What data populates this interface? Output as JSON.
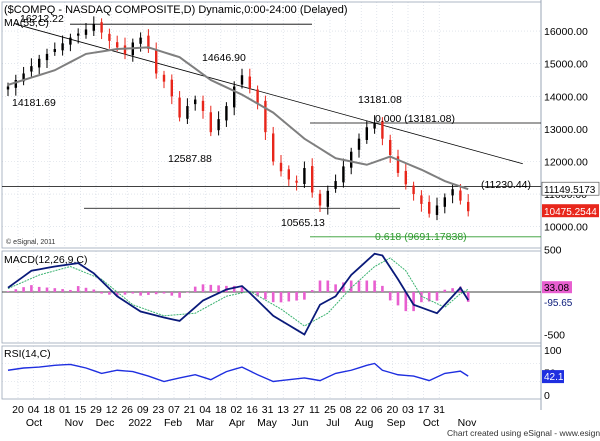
{
  "header": {
    "title": "($COMPQ - NASDAQ COMPOSITE,D) Dynamic,0:00-24:00 (Delayed)",
    "ma_label": "MA(55,C)",
    "credit": "© eSignal, 2011",
    "footer": "Chart created using eSignal - www.esignal.com"
  },
  "colors": {
    "background": "#ffffff",
    "grid": "#cfd6e0",
    "candle_up": "#000000",
    "candle_down": "#e8261b",
    "ma": "#7f7f7f",
    "trendline": "#000000",
    "fib_zero": "#000000",
    "fib_618": "#2e9a2e",
    "macd": "#0a1a7a",
    "signal": "#3cb371",
    "hist": "#e85fd0",
    "rsi": "#1f2fe0",
    "last_price_box": "#e8261b"
  },
  "chart_data": [
    {
      "type": "candlestick",
      "title": "($COMPQ - NASDAQ COMPOSITE,D) Dynamic,0:00-24:00 (Delayed)",
      "ylim": [
        9500,
        16600
      ],
      "yticks": [
        "10000.00",
        "11000.00",
        "12000.00",
        "13000.00",
        "14000.00",
        "15000.00",
        "16000.00"
      ],
      "x_major": [
        "Oct",
        "Nov",
        "Dec",
        "2022",
        "Feb",
        "Mar",
        "Apr",
        "May",
        "Jun",
        "Jul",
        "Aug",
        "Sep",
        "Oct",
        "Nov"
      ],
      "x_minor": [
        "20",
        "04",
        "18",
        "01",
        "15",
        "29",
        "12",
        "26",
        "09",
        "23",
        "07",
        "21",
        "04",
        "18",
        "02",
        "16",
        "31",
        "13",
        "27",
        "11",
        "25",
        "08",
        "22",
        "06",
        "20",
        "03",
        "17",
        "31"
      ],
      "last_price": "10475.2544",
      "ma_last": "11149.5173",
      "annotations": [
        "16212.22",
        "14181.69",
        "14646.90",
        "12587.88",
        "10565.13",
        "13181.08",
        "(11230.44)"
      ],
      "fib_levels": [
        {
          "label": "0.000 (13181.08)",
          "value": 13181.08
        },
        {
          "label": "0.618 (9691.17838)",
          "value": 9691.18
        }
      ],
      "horizontal_levels": [
        16212.22,
        11230.44,
        10565.13
      ],
      "trendline": [
        [
          1,
          16212.22
        ],
        [
          66,
          11930.0
        ]
      ],
      "close_anchors": [
        [
          0,
          14300
        ],
        [
          2,
          14700
        ],
        [
          4,
          15150
        ],
        [
          6,
          15450
        ],
        [
          8,
          15800
        ],
        [
          10,
          16050
        ],
        [
          11,
          16212
        ],
        [
          13,
          15700
        ],
        [
          15,
          15300
        ],
        [
          16,
          15650
        ],
        [
          17,
          15800
        ],
        [
          18,
          15450
        ],
        [
          19,
          14700
        ],
        [
          20,
          14450
        ],
        [
          21,
          14000
        ],
        [
          22,
          13350
        ],
        [
          23,
          13700
        ],
        [
          24,
          13900
        ],
        [
          25,
          13550
        ],
        [
          26,
          12900
        ],
        [
          27,
          13300
        ],
        [
          28,
          13700
        ],
        [
          29,
          14300
        ],
        [
          30,
          14646
        ],
        [
          31,
          14250
        ],
        [
          32,
          13800
        ],
        [
          33,
          12900
        ],
        [
          34,
          12000
        ],
        [
          35,
          11700
        ],
        [
          36,
          11450
        ],
        [
          37,
          11350
        ],
        [
          38,
          11800
        ],
        [
          39,
          11050
        ],
        [
          40,
          10650
        ],
        [
          41,
          11100
        ],
        [
          42,
          11400
        ],
        [
          43,
          11850
        ],
        [
          44,
          12300
        ],
        [
          45,
          12700
        ],
        [
          46,
          13050
        ],
        [
          47,
          13181
        ],
        [
          48,
          12700
        ],
        [
          49,
          12200
        ],
        [
          50,
          11650
        ],
        [
          51,
          11300
        ],
        [
          52,
          11000
        ],
        [
          53,
          10700
        ],
        [
          54,
          10400
        ],
        [
          55,
          10650
        ],
        [
          56,
          10900
        ],
        [
          57,
          11150
        ],
        [
          58,
          10800
        ],
        [
          59,
          10475
        ]
      ],
      "ma_anchors": [
        [
          0,
          14350
        ],
        [
          6,
          14800
        ],
        [
          10,
          15300
        ],
        [
          14,
          15450
        ],
        [
          18,
          15500
        ],
        [
          22,
          15200
        ],
        [
          26,
          14500
        ],
        [
          30,
          14050
        ],
        [
          34,
          13500
        ],
        [
          38,
          12700
        ],
        [
          42,
          12100
        ],
        [
          46,
          11900
        ],
        [
          49,
          12150
        ],
        [
          53,
          11750
        ],
        [
          56,
          11400
        ],
        [
          59,
          11150
        ]
      ]
    },
    {
      "type": "line",
      "title": "MACD(12,26,9,C)",
      "ylim": [
        -600,
        700
      ],
      "yticks": [
        "500",
        "-500"
      ],
      "last_values": [
        "33.08",
        "-95.65"
      ],
      "macd_anchors": [
        [
          0,
          50
        ],
        [
          3,
          250
        ],
        [
          6,
          300
        ],
        [
          9,
          340
        ],
        [
          11,
          220
        ],
        [
          14,
          -50
        ],
        [
          17,
          -230
        ],
        [
          20,
          -300
        ],
        [
          22,
          -340
        ],
        [
          25,
          -100
        ],
        [
          28,
          30
        ],
        [
          30,
          70
        ],
        [
          31,
          -10
        ],
        [
          34,
          -280
        ],
        [
          38,
          -500
        ],
        [
          40,
          -150
        ],
        [
          42,
          -50
        ],
        [
          44,
          200
        ],
        [
          47,
          450
        ],
        [
          48,
          430
        ],
        [
          50,
          150
        ],
        [
          52,
          -150
        ],
        [
          55,
          -250
        ],
        [
          57,
          -50
        ],
        [
          58,
          50
        ],
        [
          59,
          -96
        ]
      ],
      "signal_anchors": [
        [
          0,
          40
        ],
        [
          4,
          200
        ],
        [
          8,
          300
        ],
        [
          12,
          150
        ],
        [
          16,
          -150
        ],
        [
          20,
          -280
        ],
        [
          24,
          -250
        ],
        [
          28,
          -50
        ],
        [
          31,
          10
        ],
        [
          35,
          -200
        ],
        [
          38,
          -400
        ],
        [
          41,
          -250
        ],
        [
          44,
          50
        ],
        [
          47,
          300
        ],
        [
          49,
          400
        ],
        [
          51,
          250
        ],
        [
          53,
          -50
        ],
        [
          56,
          -180
        ],
        [
          58,
          -20
        ],
        [
          59,
          33
        ]
      ]
    },
    {
      "type": "line",
      "title": "RSI(14,C)",
      "ylim": [
        0,
        110
      ],
      "yticks": [
        "100",
        "50",
        "0"
      ],
      "last_value": "42.1",
      "rsi_anchors": [
        [
          0,
          55
        ],
        [
          2,
          60
        ],
        [
          4,
          62
        ],
        [
          6,
          66
        ],
        [
          8,
          68
        ],
        [
          10,
          60
        ],
        [
          12,
          48
        ],
        [
          14,
          55
        ],
        [
          16,
          52
        ],
        [
          18,
          42
        ],
        [
          20,
          30
        ],
        [
          22,
          38
        ],
        [
          24,
          45
        ],
        [
          26,
          34
        ],
        [
          28,
          52
        ],
        [
          30,
          62
        ],
        [
          32,
          45
        ],
        [
          34,
          30
        ],
        [
          36,
          34
        ],
        [
          38,
          38
        ],
        [
          40,
          32
        ],
        [
          42,
          48
        ],
        [
          44,
          55
        ],
        [
          46,
          66
        ],
        [
          47,
          70
        ],
        [
          48,
          55
        ],
        [
          50,
          45
        ],
        [
          52,
          42
        ],
        [
          54,
          32
        ],
        [
          56,
          48
        ],
        [
          58,
          53
        ],
        [
          59,
          42
        ]
      ]
    }
  ]
}
